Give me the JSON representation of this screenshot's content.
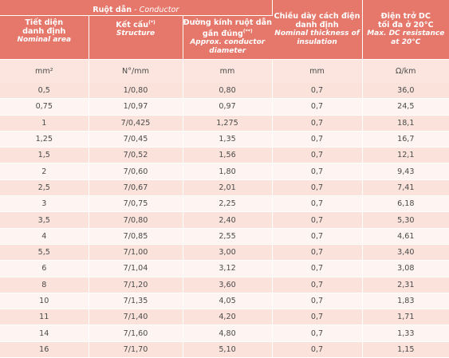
{
  "header": {
    "conductor": {
      "label": "Ruột dẫn",
      "sep": " - ",
      "en": "Conductor"
    },
    "area": {
      "vi": [
        "Tiết diện",
        "danh định"
      ],
      "en": "Nominal area"
    },
    "structure": {
      "vi": "Kết cấu",
      "sup": "(*)",
      "en": "Structure"
    },
    "diameter": {
      "vi": [
        "Đường kính ruột dẫn",
        "gần đúng"
      ],
      "sup": "(**)",
      "en": [
        "Approx. conductor",
        "diameter"
      ]
    },
    "insulation": {
      "vi": [
        "Chiều dày cách điện",
        "danh định"
      ],
      "en": [
        "Nominal thickness of",
        "insulation"
      ]
    },
    "resistance": {
      "vi": [
        "Điện trở DC",
        "tối đa ở 20°C"
      ],
      "en": [
        "Max. DC resistance",
        "at 20°C"
      ]
    }
  },
  "units": [
    "mm²",
    "N°/mm",
    "mm",
    "mm",
    "Ω/km"
  ],
  "rows": [
    [
      "0,5",
      "1/0,80",
      "0,80",
      "0,7",
      "36,0"
    ],
    [
      "0,75",
      "1/0,97",
      "0,97",
      "0,7",
      "24,5"
    ],
    [
      "1",
      "7/0,425",
      "1,275",
      "0,7",
      "18,1"
    ],
    [
      "1,25",
      "7/0,45",
      "1,35",
      "0,7",
      "16,7"
    ],
    [
      "1,5",
      "7/0,52",
      "1,56",
      "0,7",
      "12,1"
    ],
    [
      "2",
      "7/0,60",
      "1,80",
      "0,7",
      "9,43"
    ],
    [
      "2,5",
      "7/0,67",
      "2,01",
      "0,7",
      "7,41"
    ],
    [
      "3",
      "7/0,75",
      "2,25",
      "0,7",
      "6,18"
    ],
    [
      "3,5",
      "7/0,80",
      "2,40",
      "0,7",
      "5,30"
    ],
    [
      "4",
      "7/0,85",
      "2,55",
      "0,7",
      "4,61"
    ],
    [
      "5,5",
      "7/1,00",
      "3,00",
      "0,7",
      "3,40"
    ],
    [
      "6",
      "7/1,04",
      "3,12",
      "0,7",
      "3,08"
    ],
    [
      "8",
      "7/1,20",
      "3,60",
      "0,7",
      "2,31"
    ],
    [
      "10",
      "7/1,35",
      "4,05",
      "0,7",
      "1,83"
    ],
    [
      "11",
      "7/1,40",
      "4,20",
      "0,7",
      "1,71"
    ],
    [
      "14",
      "7/1,60",
      "4,80",
      "0,7",
      "1,33"
    ],
    [
      "16",
      "7/1,70",
      "5,10",
      "0,7",
      "1,15"
    ]
  ]
}
